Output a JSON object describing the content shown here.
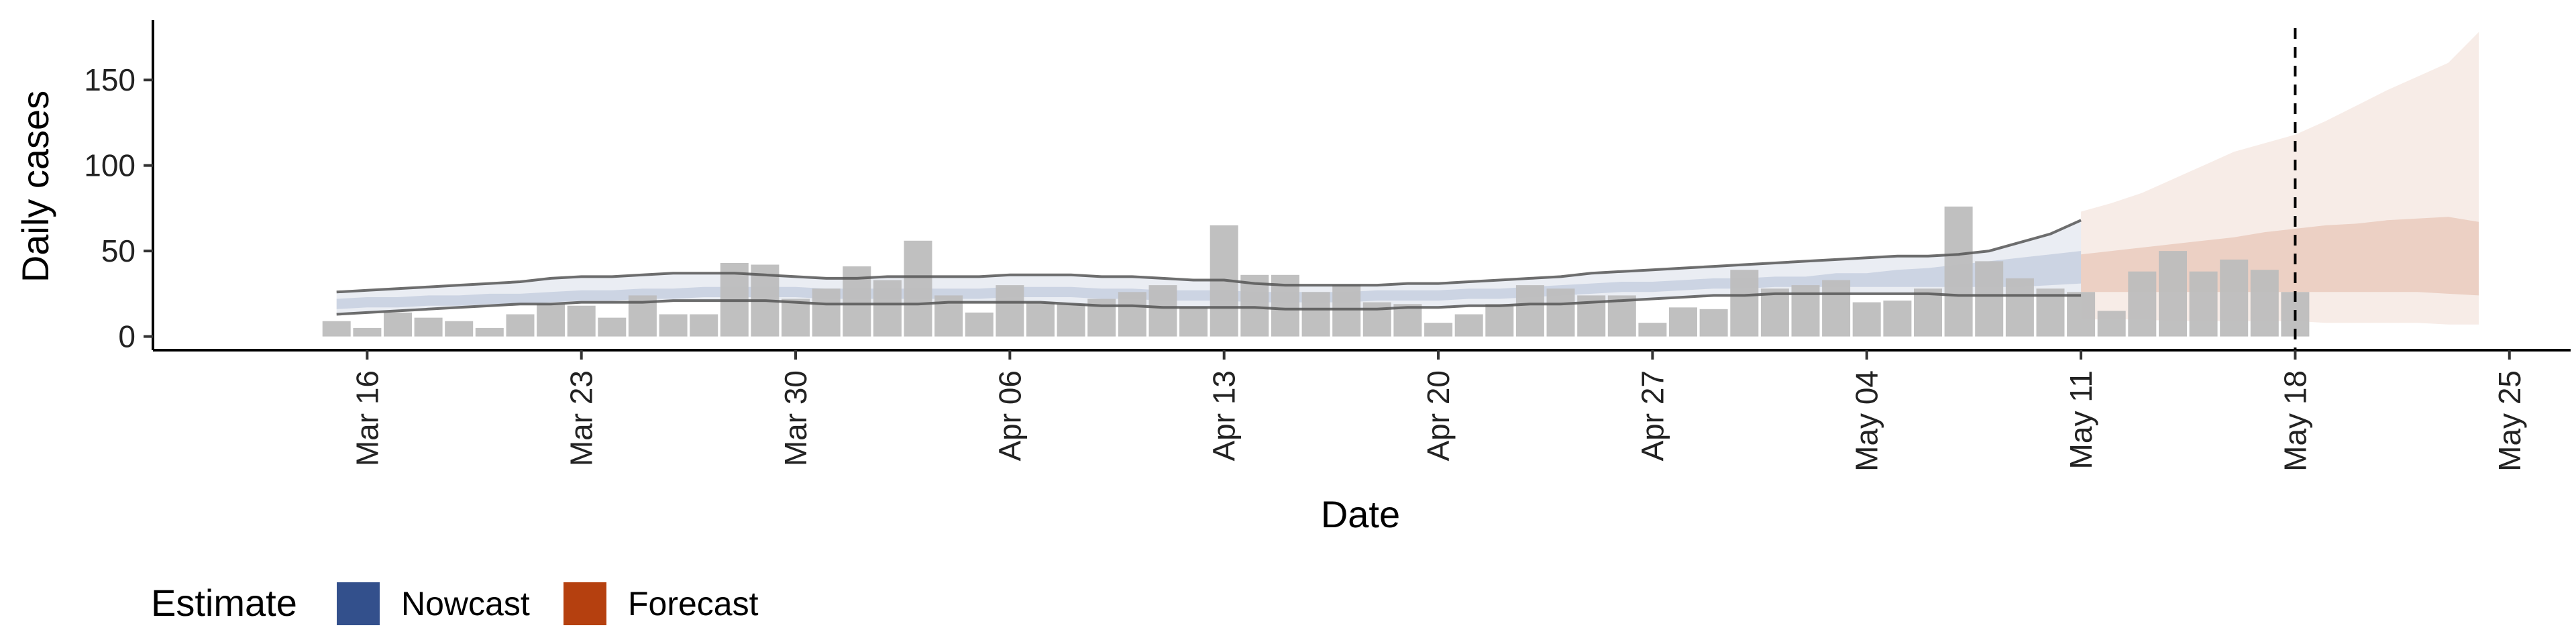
{
  "chart_data": {
    "type": "bar",
    "title": "",
    "xlabel": "Date",
    "ylabel": "Daily cases",
    "ylim": [
      -8,
      185
    ],
    "yticks": [
      0,
      50,
      100,
      150
    ],
    "xticks": [
      "2020-03-16",
      "2020-03-23",
      "2020-03-30",
      "2020-04-06",
      "2020-04-13",
      "2020-04-20",
      "2020-04-27",
      "2020-05-04",
      "2020-05-11",
      "2020-05-18",
      "2020-05-25"
    ],
    "xtick_labels": [
      "Mar 16",
      "Mar 23",
      "Mar 30",
      "Apr 06",
      "Apr 13",
      "Apr 20",
      "Apr 27",
      "May 04",
      "May 11",
      "May 18",
      "May 25"
    ],
    "xlim": [
      "2020-03-09",
      "2020-05-27"
    ],
    "reference_line": "2020-05-18",
    "bars": {
      "start": "2020-03-15",
      "values": [
        9,
        5,
        14,
        11,
        9,
        5,
        13,
        19,
        18,
        11,
        24,
        13,
        13,
        43,
        42,
        22,
        28,
        41,
        33,
        56,
        24,
        14,
        30,
        20,
        19,
        22,
        26,
        30,
        17,
        65,
        36,
        36,
        26,
        30,
        20,
        19,
        8,
        13,
        19,
        30,
        28,
        24,
        24,
        8,
        17,
        16,
        39,
        28,
        30,
        33,
        20,
        21,
        28,
        76,
        44,
        34,
        28,
        26,
        15,
        38,
        50,
        38,
        45,
        39,
        26
      ]
    },
    "series": [
      {
        "name": "Nowcast",
        "start": "2020-03-15",
        "median": [
          19,
          20,
          20,
          21,
          21,
          22,
          22,
          23,
          24,
          24,
          25,
          25,
          26,
          26,
          26,
          26,
          25,
          25,
          25,
          25,
          25,
          25,
          26,
          26,
          26,
          25,
          25,
          24,
          24,
          24,
          23,
          23,
          23,
          23,
          24,
          24,
          24,
          25,
          25,
          26,
          27,
          28,
          29,
          29,
          30,
          31,
          31,
          32,
          32,
          33,
          33,
          34,
          34,
          35,
          36,
          37,
          39,
          40
        ],
        "lower_50": [
          16,
          17,
          17,
          18,
          18,
          19,
          19,
          20,
          21,
          21,
          22,
          22,
          23,
          23,
          23,
          23,
          22,
          22,
          22,
          22,
          22,
          22,
          23,
          23,
          23,
          22,
          22,
          21,
          21,
          21,
          20,
          20,
          20,
          20,
          21,
          21,
          21,
          22,
          22,
          23,
          24,
          25,
          26,
          26,
          27,
          28,
          28,
          29,
          29,
          29,
          29,
          29,
          29,
          29,
          29,
          29,
          30,
          31
        ],
        "upper_50": [
          22,
          23,
          23,
          24,
          24,
          25,
          25,
          26,
          27,
          27,
          28,
          28,
          29,
          29,
          29,
          29,
          28,
          28,
          28,
          28,
          28,
          28,
          29,
          29,
          29,
          28,
          28,
          27,
          27,
          27,
          26,
          26,
          26,
          26,
          27,
          27,
          27,
          28,
          28,
          29,
          30,
          31,
          32,
          32,
          33,
          34,
          34,
          35,
          35,
          37,
          37,
          39,
          40,
          42,
          44,
          46,
          48,
          50
        ],
        "lower_90": [
          13,
          14,
          15,
          16,
          17,
          18,
          19,
          19,
          20,
          20,
          20,
          21,
          21,
          21,
          21,
          20,
          19,
          19,
          19,
          19,
          20,
          20,
          20,
          20,
          19,
          18,
          18,
          17,
          17,
          17,
          17,
          16,
          16,
          16,
          16,
          17,
          17,
          18,
          18,
          19,
          19,
          20,
          21,
          22,
          23,
          24,
          24,
          25,
          25,
          25,
          25,
          25,
          25,
          24,
          24,
          24,
          24,
          24
        ],
        "upper_90": [
          26,
          27,
          28,
          29,
          30,
          31,
          32,
          34,
          35,
          35,
          36,
          37,
          37,
          37,
          36,
          35,
          34,
          34,
          35,
          35,
          35,
          35,
          36,
          36,
          36,
          35,
          35,
          34,
          33,
          33,
          31,
          30,
          30,
          30,
          30,
          31,
          31,
          32,
          33,
          34,
          35,
          37,
          38,
          39,
          40,
          41,
          42,
          43,
          44,
          45,
          46,
          47,
          47,
          48,
          50,
          55,
          60,
          68
        ]
      },
      {
        "name": "Forecast",
        "start": "2020-05-11",
        "median": [
          33,
          34,
          35,
          36,
          37,
          38,
          39,
          41,
          42,
          43,
          44,
          46,
          47,
          48
        ],
        "lower_50": [
          26,
          26,
          26,
          26,
          26,
          26,
          26,
          26,
          26,
          26,
          26,
          26,
          25,
          24
        ],
        "upper_50": [
          48,
          50,
          52,
          54,
          56,
          58,
          61,
          63,
          65,
          66,
          68,
          69,
          70,
          67
        ],
        "lower_90": [
          10,
          10,
          10,
          9,
          9,
          9,
          9,
          9,
          8,
          8,
          8,
          8,
          7,
          7
        ],
        "upper_90": [
          73,
          78,
          84,
          92,
          100,
          108,
          113,
          118,
          126,
          135,
          144,
          152,
          160,
          178
        ]
      }
    ],
    "legend": {
      "title": "Estimate",
      "position": "bottom-left",
      "entries": [
        "Nowcast",
        "Forecast"
      ]
    },
    "grid": false
  },
  "colors": {
    "nowcast": "#33508c",
    "forecast": "#b5400f",
    "bars": "#bdbdbd",
    "reported_line": "#555555",
    "axis": "#000000"
  }
}
